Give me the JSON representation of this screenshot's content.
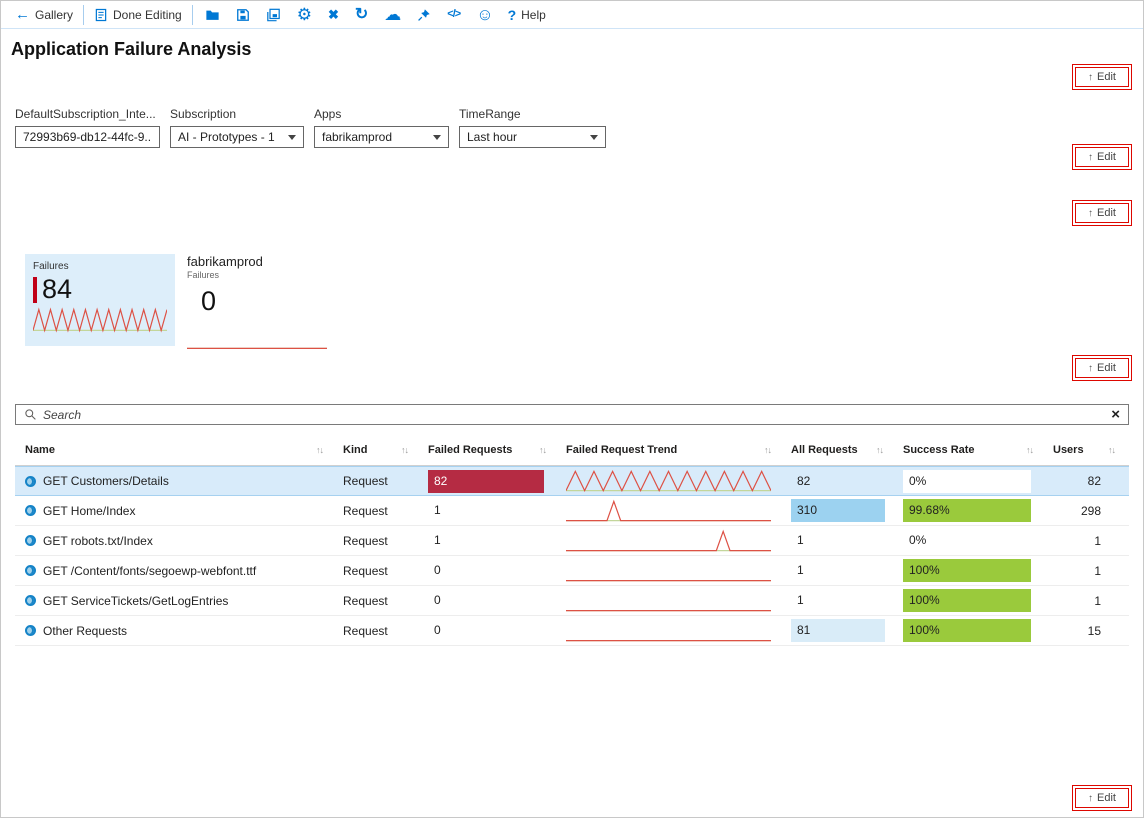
{
  "icons": {
    "sort": "↑↓",
    "back_arrow": "←",
    "gear": "⚙",
    "close_x": "✖",
    "refresh": "↻",
    "cloud": "☁",
    "smiley": "☺",
    "code": "</>",
    "help_question": "?",
    "clear_x": "×",
    "up_arrow": "↑"
  },
  "colors": {
    "accent": "#0078d4",
    "edit_red": "#dd0700",
    "fail_red": "#b52b43",
    "success_green": "#9aca3c",
    "all_blue_medium": "#9cd2f0",
    "all_blue_light": "#d9ecf8",
    "row_highlight": "#d8ebfa"
  },
  "toolbar": {
    "gallery": "Gallery",
    "done_editing": "Done Editing",
    "help": "Help"
  },
  "page_title": "Application Failure Analysis",
  "edit_button": {
    "label": "Edit"
  },
  "filters": [
    {
      "label": "DefaultSubscription_Inte...",
      "value": "72993b69-db12-44fc-9...",
      "type": "text"
    },
    {
      "label": "Subscription",
      "value": "AI - Prototypes - 1",
      "type": "select"
    },
    {
      "label": "Apps",
      "value": "fabrikamprod",
      "type": "select"
    },
    {
      "label": "TimeRange",
      "value": "Last hour",
      "type": "select"
    }
  ],
  "tiles": [
    {
      "label": "Failures",
      "value": "84",
      "spark": [
        0,
        1,
        0,
        1,
        0,
        1,
        0,
        1,
        0,
        1,
        0,
        1,
        0,
        1,
        0,
        1,
        0,
        1,
        0,
        1,
        0,
        1,
        0,
        1
      ]
    },
    {
      "title": "fabrikamprod",
      "label": "Failures",
      "value": "0",
      "spark": [
        0,
        0,
        0,
        0,
        0,
        0,
        0,
        0
      ]
    }
  ],
  "search": {
    "placeholder": "Search"
  },
  "table": {
    "columns": [
      {
        "label": "Name"
      },
      {
        "label": "Kind"
      },
      {
        "label": "Failed Requests"
      },
      {
        "label": "Failed Request Trend"
      },
      {
        "label": "All Requests"
      },
      {
        "label": "Success Rate"
      },
      {
        "label": "Users"
      }
    ],
    "rows": [
      {
        "name": "GET Customers/Details",
        "kind": "Request",
        "failed": "82",
        "all": "82",
        "success": "0%",
        "users": "82",
        "selected": true,
        "failed_bar": {
          "fill": 0.97,
          "color": "#b52b43",
          "text": "#ffffff"
        },
        "all_bar": {
          "fill": 1,
          "color": "transparent"
        },
        "success_bar": {
          "fill": 0.97,
          "color": "#ffffff"
        },
        "trend": [
          0,
          1,
          0,
          1,
          0,
          1,
          0,
          1,
          0,
          1,
          0,
          1,
          0,
          1,
          0,
          1,
          0,
          1,
          0,
          1,
          0,
          1,
          0
        ]
      },
      {
        "name": "GET Home/Index",
        "kind": "Request",
        "failed": "1",
        "all": "310",
        "success": "99.68%",
        "users": "298",
        "selected": false,
        "failed_bar": {
          "fill": 1,
          "color": "transparent"
        },
        "all_bar": {
          "fill": 1,
          "color": "#9cd2f0"
        },
        "success_bar": {
          "fill": 0.97,
          "color": "#9aca3c"
        },
        "trend": [
          0,
          0,
          0,
          0,
          0,
          0,
          0,
          1,
          0,
          0,
          0,
          0,
          0,
          0,
          0,
          0,
          0,
          0,
          0,
          0,
          0,
          0,
          0,
          0,
          0,
          0,
          0,
          0,
          0,
          0,
          0
        ]
      },
      {
        "name": "GET robots.txt/Index",
        "kind": "Request",
        "failed": "1",
        "all": "1",
        "success": "0%",
        "users": "1",
        "selected": false,
        "failed_bar": {
          "fill": 1,
          "color": "transparent"
        },
        "all_bar": {
          "fill": 1,
          "color": "transparent"
        },
        "success_bar": {
          "fill": 1,
          "color": "transparent"
        },
        "trend": [
          0,
          0,
          0,
          0,
          0,
          0,
          0,
          0,
          0,
          0,
          0,
          0,
          0,
          0,
          0,
          0,
          0,
          0,
          0,
          0,
          0,
          0,
          0,
          1,
          0,
          0,
          0,
          0,
          0,
          0,
          0
        ]
      },
      {
        "name": "GET /Content/fonts/segoewp-webfont.ttf",
        "kind": "Request",
        "failed": "0",
        "all": "1",
        "success": "100%",
        "users": "1",
        "selected": false,
        "failed_bar": {
          "fill": 1,
          "color": "transparent"
        },
        "all_bar": {
          "fill": 1,
          "color": "transparent"
        },
        "success_bar": {
          "fill": 0.97,
          "color": "#9aca3c"
        },
        "trend": [
          0,
          0,
          0,
          0,
          0,
          0,
          0,
          0,
          0,
          0,
          0,
          0,
          0,
          0,
          0,
          0,
          0,
          0,
          0,
          0,
          0,
          0,
          0,
          0,
          0,
          0,
          0,
          0,
          0,
          0,
          0
        ]
      },
      {
        "name": "GET ServiceTickets/GetLogEntries",
        "kind": "Request",
        "failed": "0",
        "all": "1",
        "success": "100%",
        "users": "1",
        "selected": false,
        "failed_bar": {
          "fill": 1,
          "color": "transparent"
        },
        "all_bar": {
          "fill": 1,
          "color": "transparent"
        },
        "success_bar": {
          "fill": 0.97,
          "color": "#9aca3c"
        },
        "trend": [
          0,
          0,
          0,
          0,
          0,
          0,
          0,
          0,
          0,
          0,
          0,
          0,
          0,
          0,
          0,
          0,
          0,
          0,
          0,
          0,
          0,
          0,
          0,
          0,
          0,
          0,
          0,
          0,
          0,
          0,
          0
        ]
      },
      {
        "name": "Other Requests",
        "kind": "Request",
        "failed": "0",
        "all": "81",
        "success": "100%",
        "users": "15",
        "selected": false,
        "failed_bar": {
          "fill": 1,
          "color": "transparent"
        },
        "all_bar": {
          "fill": 1,
          "color": "#d9ecf8"
        },
        "success_bar": {
          "fill": 0.97,
          "color": "#9aca3c"
        },
        "trend": [
          0,
          0,
          0,
          0,
          0,
          0,
          0,
          0,
          0,
          0,
          0,
          0,
          0,
          0,
          0,
          0,
          0,
          0,
          0,
          0,
          0,
          0,
          0,
          0,
          0,
          0,
          0,
          0,
          0,
          0,
          0
        ]
      }
    ]
  }
}
